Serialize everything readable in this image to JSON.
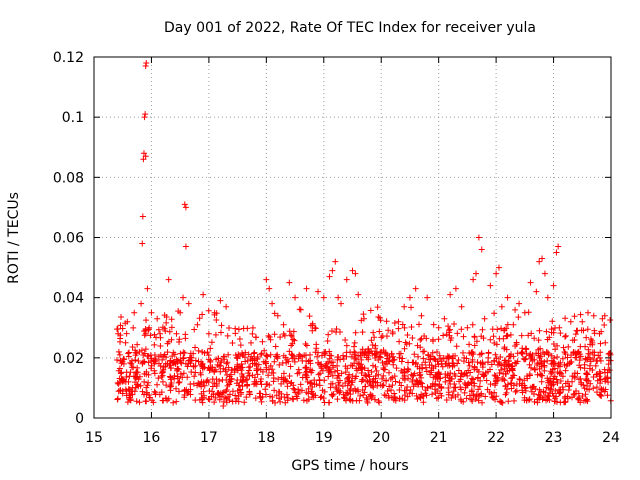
{
  "chart_data": {
    "type": "scatter",
    "title": "Day 001 of 2022, Rate Of TEC Index for receiver yula",
    "xlabel": "GPS time / hours",
    "ylabel": "ROTI / TECUs",
    "xlim": [
      15,
      24
    ],
    "ylim": [
      0,
      0.12
    ],
    "xticks": [
      15,
      16,
      17,
      18,
      19,
      20,
      21,
      22,
      23,
      24
    ],
    "yticks": [
      0,
      0.02,
      0.04,
      0.06,
      0.08,
      0.1,
      0.12
    ],
    "xtick_labels": [
      "15",
      "16",
      "17",
      "18",
      "19",
      "20",
      "21",
      "22",
      "23",
      "24"
    ],
    "ytick_labels": [
      "0",
      "0.02",
      "0.04",
      "0.06",
      "0.08",
      "0.1",
      "0.12"
    ],
    "grid": true,
    "marker": "plus",
    "color": "#ff0000",
    "series": [
      {
        "name": "ROTI",
        "points": [
          [
            15.42,
            0.028
          ],
          [
            15.45,
            0.021
          ],
          [
            15.48,
            0.013
          ],
          [
            15.5,
            0.009
          ],
          [
            15.52,
            0.018
          ],
          [
            15.55,
            0.025
          ],
          [
            15.58,
            0.032
          ],
          [
            15.6,
            0.012
          ],
          [
            15.63,
            0.008
          ],
          [
            15.66,
            0.019
          ],
          [
            15.7,
            0.035
          ],
          [
            15.73,
            0.015
          ],
          [
            15.76,
            0.011
          ],
          [
            15.79,
            0.022
          ],
          [
            15.82,
            0.038
          ],
          [
            15.84,
            0.058
          ],
          [
            15.85,
            0.067
          ],
          [
            15.86,
            0.086
          ],
          [
            15.87,
            0.088
          ],
          [
            15.88,
            0.1
          ],
          [
            15.89,
            0.101
          ],
          [
            15.9,
            0.117
          ],
          [
            15.91,
            0.118
          ],
          [
            15.9,
            0.087
          ],
          [
            15.93,
            0.043
          ],
          [
            15.96,
            0.03
          ],
          [
            16.0,
            0.035
          ],
          [
            16.05,
            0.018
          ],
          [
            16.1,
            0.033
          ],
          [
            16.15,
            0.028
          ],
          [
            16.2,
            0.012
          ],
          [
            16.3,
            0.046
          ],
          [
            16.35,
            0.026
          ],
          [
            16.4,
            0.014
          ],
          [
            16.5,
            0.035
          ],
          [
            16.55,
            0.04
          ],
          [
            16.58,
            0.071
          ],
          [
            16.6,
            0.07
          ],
          [
            16.6,
            0.057
          ],
          [
            16.65,
            0.038
          ],
          [
            16.7,
            0.02
          ],
          [
            16.8,
            0.031
          ],
          [
            16.9,
            0.041
          ],
          [
            17.0,
            0.028
          ],
          [
            17.1,
            0.035
          ],
          [
            17.2,
            0.039
          ],
          [
            17.25,
            0.004
          ],
          [
            17.3,
            0.037
          ],
          [
            17.4,
            0.016
          ],
          [
            17.6,
            0.021
          ],
          [
            17.8,
            0.018
          ],
          [
            18.0,
            0.046
          ],
          [
            18.05,
            0.043
          ],
          [
            18.1,
            0.038
          ],
          [
            18.2,
            0.034
          ],
          [
            18.3,
            0.031
          ],
          [
            18.4,
            0.045
          ],
          [
            18.5,
            0.04
          ],
          [
            18.6,
            0.036
          ],
          [
            18.7,
            0.043
          ],
          [
            18.8,
            0.029
          ],
          [
            18.9,
            0.042
          ],
          [
            19.0,
            0.04
          ],
          [
            19.1,
            0.047
          ],
          [
            19.15,
            0.049
          ],
          [
            19.2,
            0.052
          ],
          [
            19.25,
            0.04
          ],
          [
            19.3,
            0.038
          ],
          [
            19.4,
            0.046
          ],
          [
            19.5,
            0.049
          ],
          [
            19.55,
            0.048
          ],
          [
            19.6,
            0.041
          ],
          [
            19.7,
            0.033
          ],
          [
            19.8,
            0.012
          ],
          [
            19.9,
            0.024
          ],
          [
            20.0,
            0.022
          ],
          [
            20.1,
            0.018
          ],
          [
            20.2,
            0.028
          ],
          [
            20.3,
            0.032
          ],
          [
            20.4,
            0.037
          ],
          [
            20.5,
            0.04
          ],
          [
            20.6,
            0.043
          ],
          [
            20.7,
            0.034
          ],
          [
            20.8,
            0.04
          ],
          [
            20.9,
            0.026
          ],
          [
            21.0,
            0.03
          ],
          [
            21.1,
            0.033
          ],
          [
            21.2,
            0.041
          ],
          [
            21.3,
            0.043
          ],
          [
            21.4,
            0.037
          ],
          [
            21.5,
            0.03
          ],
          [
            21.6,
            0.046
          ],
          [
            21.65,
            0.048
          ],
          [
            21.7,
            0.06
          ],
          [
            21.75,
            0.056
          ],
          [
            21.8,
            0.033
          ],
          [
            21.9,
            0.044
          ],
          [
            22.0,
            0.048
          ],
          [
            22.05,
            0.05
          ],
          [
            22.1,
            0.037
          ],
          [
            22.2,
            0.04
          ],
          [
            22.3,
            0.031
          ],
          [
            22.4,
            0.038
          ],
          [
            22.5,
            0.035
          ],
          [
            22.6,
            0.045
          ],
          [
            22.7,
            0.042
          ],
          [
            22.75,
            0.052
          ],
          [
            22.8,
            0.053
          ],
          [
            22.85,
            0.048
          ],
          [
            22.9,
            0.04
          ],
          [
            23.0,
            0.044
          ],
          [
            23.05,
            0.055
          ],
          [
            23.08,
            0.057
          ],
          [
            23.1,
            0.03
          ],
          [
            23.2,
            0.027
          ],
          [
            23.3,
            0.032
          ],
          [
            23.4,
            0.029
          ],
          [
            23.5,
            0.032
          ],
          [
            23.6,
            0.035
          ],
          [
            23.7,
            0.034
          ],
          [
            23.8,
            0.028
          ],
          [
            23.85,
            0.033
          ],
          [
            23.9,
            0.025
          ],
          [
            23.95,
            0.016
          ]
        ],
        "baseline_band": {
          "x_range": [
            15.4,
            24.0
          ],
          "y_range": [
            0.005,
            0.022
          ],
          "density": "very dense"
        }
      }
    ]
  }
}
